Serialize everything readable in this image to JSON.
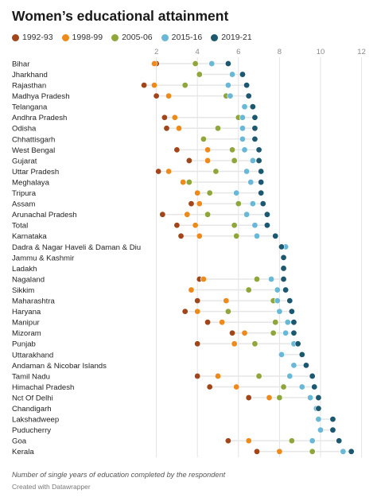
{
  "title": "Women’s educational attainment",
  "footnote": "Number of single years of education completed by the respondent",
  "credit": "Created with Datawrapper",
  "chart_data": {
    "type": "scatter",
    "title": "Women’s educational attainment",
    "xlim": [
      0,
      12
    ],
    "xticks": [
      2,
      4,
      6,
      8,
      10,
      12
    ],
    "grid": true,
    "legend_position": "top-left",
    "series": [
      {
        "name": "1992-93",
        "color": "#a0461a"
      },
      {
        "name": "1998-99",
        "color": "#ee8a1a"
      },
      {
        "name": "2005-06",
        "color": "#8fa63a"
      },
      {
        "name": "2015-16",
        "color": "#6ab8d8"
      },
      {
        "name": "2019-21",
        "color": "#1c5870"
      }
    ],
    "rows": [
      {
        "label": "Bihar",
        "values": [
          2.0,
          1.9,
          3.9,
          4.7,
          5.5
        ]
      },
      {
        "label": "Jharkhand",
        "values": [
          null,
          null,
          4.1,
          5.7,
          6.2
        ]
      },
      {
        "label": "Rajasthan",
        "values": [
          1.4,
          1.9,
          3.4,
          5.5,
          6.4
        ]
      },
      {
        "label": "Madhya Pradesh",
        "values": [
          2.0,
          2.6,
          5.4,
          5.6,
          6.5
        ]
      },
      {
        "label": "Telangana",
        "values": [
          null,
          null,
          null,
          6.3,
          6.7
        ]
      },
      {
        "label": "Andhra Pradesh",
        "values": [
          2.4,
          2.9,
          6.0,
          6.2,
          6.8
        ]
      },
      {
        "label": "Odisha",
        "values": [
          2.5,
          3.1,
          5.0,
          6.2,
          6.8
        ]
      },
      {
        "label": "Chhattisgarh",
        "values": [
          null,
          null,
          4.3,
          6.2,
          6.8
        ]
      },
      {
        "label": "West Bengal",
        "values": [
          3.0,
          4.5,
          5.7,
          6.3,
          7.0
        ]
      },
      {
        "label": "Gujarat",
        "values": [
          3.6,
          4.5,
          5.8,
          6.7,
          7.0
        ]
      },
      {
        "label": "Uttar Pradesh",
        "values": [
          2.1,
          2.6,
          4.9,
          6.4,
          7.1
        ]
      },
      {
        "label": "Meghalaya",
        "values": [
          null,
          3.3,
          3.6,
          6.6,
          7.1
        ]
      },
      {
        "label": "Tripura",
        "values": [
          null,
          4.0,
          4.6,
          5.9,
          7.1
        ]
      },
      {
        "label": "Assam",
        "values": [
          3.7,
          4.1,
          6.0,
          6.7,
          7.2
        ]
      },
      {
        "label": "Arunachal Pradesh",
        "values": [
          2.3,
          3.5,
          4.5,
          6.4,
          7.4
        ]
      },
      {
        "label": "Total",
        "values": [
          3.0,
          3.9,
          5.8,
          6.8,
          7.4
        ]
      },
      {
        "label": "Karnataka",
        "values": [
          3.2,
          4.1,
          5.9,
          6.9,
          7.8
        ]
      },
      {
        "label": "Dadra & Nagar Haveli & Daman & Diu",
        "values": [
          null,
          null,
          null,
          8.3,
          8.1
        ]
      },
      {
        "label": "Jammu & Kashmir",
        "values": [
          null,
          null,
          null,
          null,
          8.2
        ]
      },
      {
        "label": "Ladakh",
        "values": [
          null,
          null,
          null,
          null,
          8.2
        ]
      },
      {
        "label": "Nagaland",
        "values": [
          4.1,
          4.3,
          6.9,
          7.6,
          8.2
        ]
      },
      {
        "label": "Sikkim",
        "values": [
          null,
          3.7,
          6.5,
          7.9,
          8.3
        ]
      },
      {
        "label": "Maharashtra",
        "values": [
          4.0,
          5.4,
          7.7,
          7.9,
          8.5
        ]
      },
      {
        "label": "Haryana",
        "values": [
          3.4,
          4.0,
          5.5,
          8.0,
          8.6
        ]
      },
      {
        "label": "Manipur",
        "values": [
          4.5,
          5.2,
          7.8,
          8.4,
          8.7
        ]
      },
      {
        "label": "Mizoram",
        "values": [
          5.7,
          6.3,
          7.7,
          8.3,
          8.7
        ]
      },
      {
        "label": "Punjab",
        "values": [
          4.0,
          5.8,
          6.8,
          8.7,
          8.9
        ]
      },
      {
        "label": "Uttarakhand",
        "values": [
          null,
          null,
          null,
          8.1,
          9.1
        ]
      },
      {
        "label": "Andaman & Nicobar Islands",
        "values": [
          null,
          null,
          null,
          8.7,
          9.3
        ]
      },
      {
        "label": "Tamil Nadu",
        "values": [
          4.0,
          5.0,
          7.0,
          8.5,
          9.6
        ]
      },
      {
        "label": "Himachal Pradesh",
        "values": [
          4.6,
          5.9,
          8.2,
          9.1,
          9.7
        ]
      },
      {
        "label": "Nct Of Delhi",
        "values": [
          6.5,
          7.5,
          8.0,
          9.5,
          9.9
        ]
      },
      {
        "label": "Chandigarh",
        "values": [
          null,
          null,
          null,
          9.8,
          9.9
        ]
      },
      {
        "label": "Lakshadweep",
        "values": [
          null,
          null,
          null,
          9.9,
          10.6
        ]
      },
      {
        "label": "Puducherry",
        "values": [
          null,
          null,
          null,
          10.0,
          10.6
        ]
      },
      {
        "label": "Goa",
        "values": [
          5.5,
          6.5,
          8.6,
          9.6,
          10.9
        ]
      },
      {
        "label": "Kerala",
        "values": [
          6.9,
          8.0,
          9.6,
          11.1,
          11.5
        ]
      }
    ]
  }
}
